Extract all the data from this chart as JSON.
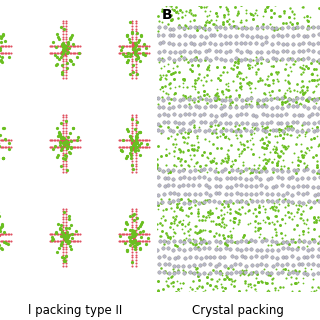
{
  "title": "",
  "left_label": "l packing type II",
  "right_label": "Crystal packing",
  "panel_b_label": "B",
  "red": "#e05060",
  "green": "#6abf20",
  "gray": "#b8b8c8",
  "fig_width": 3.2,
  "fig_height": 3.2,
  "dpi": 100,
  "bg_color": "#ffffff",
  "label_fontsize": 8.5,
  "panel_label_fontsize": 10,
  "panel_label_fontweight": "bold"
}
